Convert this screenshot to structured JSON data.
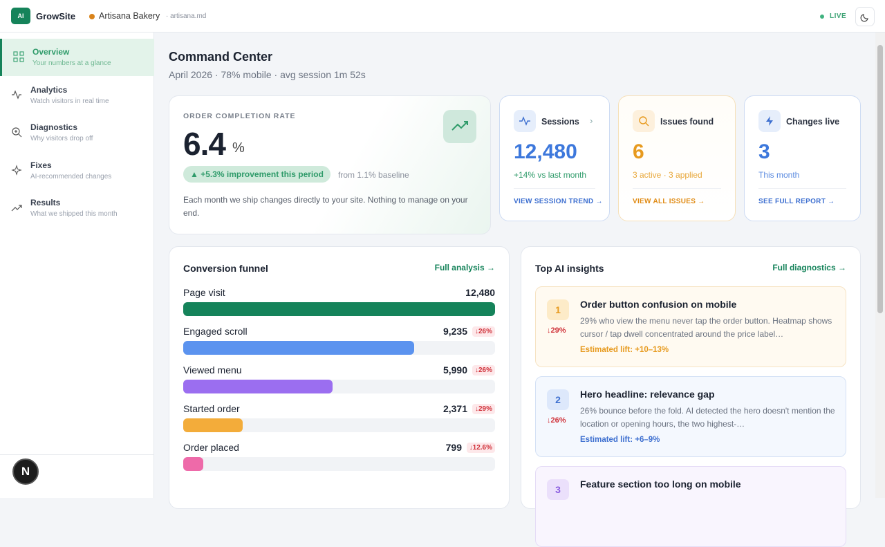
{
  "topbar": {
    "logo": "AI",
    "brand": "GrowSite",
    "site_name": "Artisana Bakery",
    "site_domain": "· artisana.md",
    "status": "LIVE"
  },
  "sidebar": {
    "items": [
      {
        "label": "Overview",
        "sub": "Your numbers at a glance"
      },
      {
        "label": "Analytics",
        "sub": "Watch visitors in real time"
      },
      {
        "label": "Diagnostics",
        "sub": "Why visitors drop off"
      },
      {
        "label": "Fixes",
        "sub": "AI-recommended changes"
      },
      {
        "label": "Results",
        "sub": "What we shipped this month"
      }
    ],
    "badge": "N"
  },
  "header": {
    "title": "Command Center",
    "subtitle": "April 2026 · 78% mobile · avg session 1m 52s"
  },
  "hero": {
    "label": "ORDER COMPLETION RATE",
    "value": "6.4",
    "unit": "%",
    "pill": "▲ +5.3% improvement this period",
    "baseline": "from 1.1% baseline",
    "note": "Each month we ship changes directly to your site. Nothing to manage on your end."
  },
  "stats": [
    {
      "title": "Sessions",
      "value": "12,480",
      "detail": "+14% vs last month",
      "link": "VIEW SESSION TREND →"
    },
    {
      "title": "Issues found",
      "value": "6",
      "detail": "3 active · 3 applied",
      "link": "VIEW ALL ISSUES →"
    },
    {
      "title": "Changes live",
      "value": "3",
      "detail": "This month",
      "link": "SEE FULL REPORT →"
    }
  ],
  "funnel": {
    "title": "Conversion funnel",
    "link": "Full analysis →",
    "steps": [
      {
        "label": "Page visit",
        "value": 12480,
        "value_label": "12,480",
        "color": "#15835a"
      },
      {
        "label": "Engaged scroll",
        "value": 9235,
        "value_label": "9,235",
        "drop": "↓26%",
        "color": "#5b93ef"
      },
      {
        "label": "Viewed menu",
        "value": 5990,
        "value_label": "5,990",
        "drop": "↓26%",
        "color": "#9b6ef0"
      },
      {
        "label": "Started order",
        "value": 2371,
        "value_label": "2,371",
        "drop": "↓29%",
        "color": "#f3ac3a"
      },
      {
        "label": "Order placed",
        "value": 799,
        "value_label": "799",
        "drop": "↓12.6%",
        "color": "#ee6aa9"
      }
    ]
  },
  "insights": {
    "title": "Top AI insights",
    "link": "Full diagnostics →",
    "items": [
      {
        "rank": "1",
        "drop": "↓29%",
        "title": "Order button confusion on mobile",
        "text": "29% who view the menu never tap the order button. Heatmap shows cursor / tap dwell concentrated around the price label…",
        "lift": "Estimated lift: +10–13%"
      },
      {
        "rank": "2",
        "drop": "↓26%",
        "title": "Hero headline: relevance gap",
        "text": "26% bounce before the fold. AI detected the hero doesn't mention the location or opening hours, the two highest-…",
        "lift": "Estimated lift: +6–9%"
      },
      {
        "rank": "3",
        "title": "Feature section too long on mobile"
      }
    ]
  }
}
